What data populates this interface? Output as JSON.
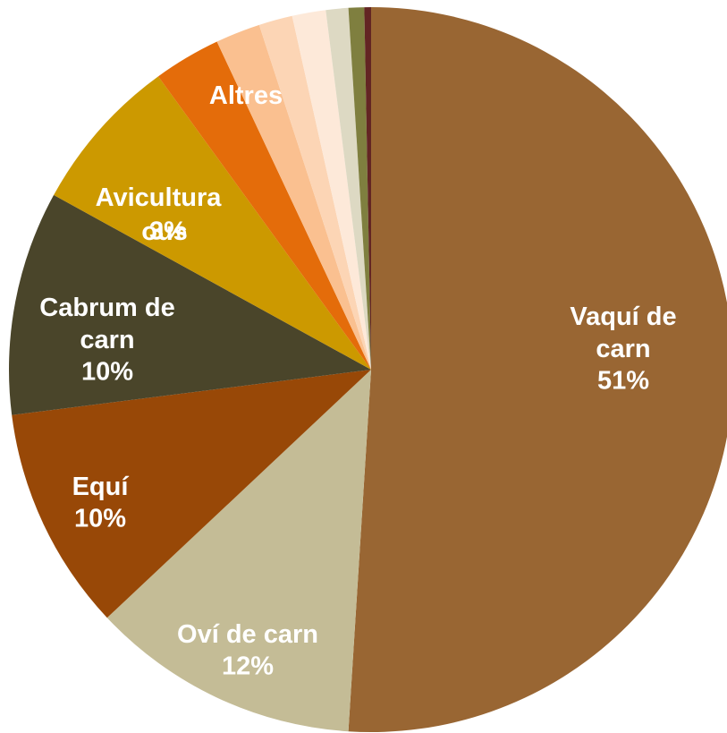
{
  "chart_data": {
    "type": "pie",
    "categories": [
      "Vaquí de carn",
      "Oví de carn",
      "Equí",
      "Cabrum de carn",
      "Avicultura",
      "ous",
      "Altres",
      null,
      null,
      null,
      null,
      null
    ],
    "values": [
      51,
      12,
      10,
      10,
      7,
      3,
      2,
      1.5,
      1.5,
      1,
      0.7,
      0.3
    ],
    "value_labels": [
      "51%",
      "12%",
      "10%",
      "10%",
      null,
      "3%",
      null,
      null,
      null,
      null,
      null,
      null
    ],
    "colors": [
      "#996633",
      "#c4bc96",
      "#984807",
      "#4a452a",
      "#cc9900",
      "#e46c0a",
      "#fac090",
      "#fcd5b5",
      "#fde9d9",
      "#ddd9c3",
      "#7f7f3f",
      "#632523"
    ],
    "start_angle": 0,
    "direction": "clockwise"
  }
}
